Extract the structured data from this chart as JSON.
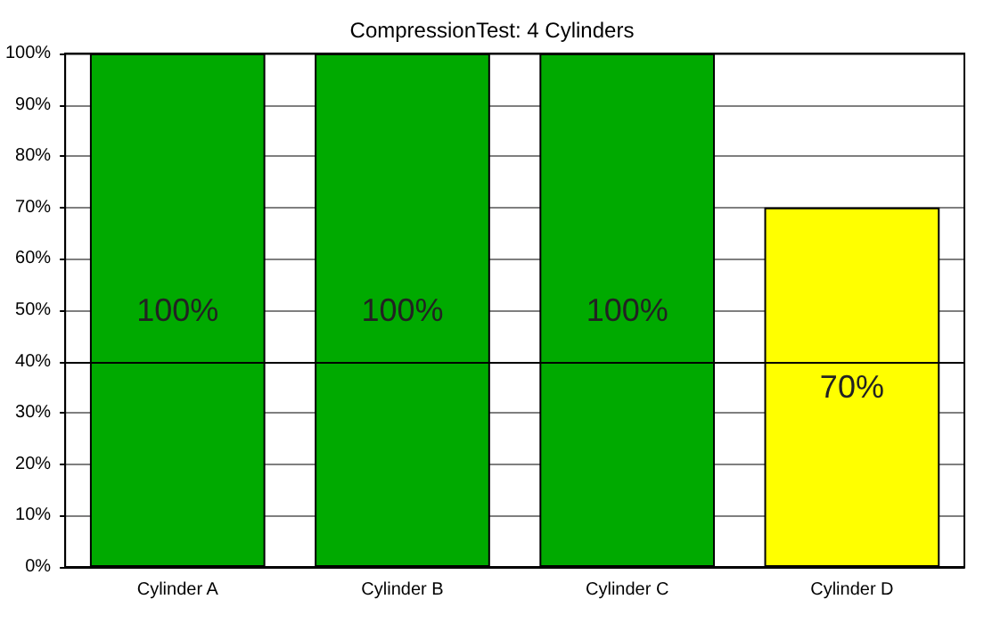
{
  "chart_data": {
    "type": "bar",
    "title": "CompressionTest: 4 Cylinders",
    "categories": [
      "Cylinder A",
      "Cylinder B",
      "Cylinder C",
      "Cylinder D"
    ],
    "values": [
      100,
      100,
      100,
      70
    ],
    "colors": [
      "#00aa00",
      "#00aa00",
      "#00aa00",
      "#ffff00"
    ],
    "value_labels": [
      "100%",
      "100%",
      "100%",
      "70%"
    ],
    "ylim": [
      0,
      100
    ],
    "yticks": [
      {
        "value": 0,
        "label": "0%"
      },
      {
        "value": 10,
        "label": "10%"
      },
      {
        "value": 20,
        "label": "20%"
      },
      {
        "value": 30,
        "label": "30%"
      },
      {
        "value": 40,
        "label": "40%"
      },
      {
        "value": 50,
        "label": "50%"
      },
      {
        "value": 60,
        "label": "60%"
      },
      {
        "value": 70,
        "label": "70%"
      },
      {
        "value": 80,
        "label": "80%"
      },
      {
        "value": 90,
        "label": "90%"
      },
      {
        "value": 100,
        "label": "100%"
      }
    ],
    "ref_lines": [
      {
        "axis": "y",
        "value": 40,
        "color": "#000000"
      }
    ],
    "grid": "y"
  }
}
